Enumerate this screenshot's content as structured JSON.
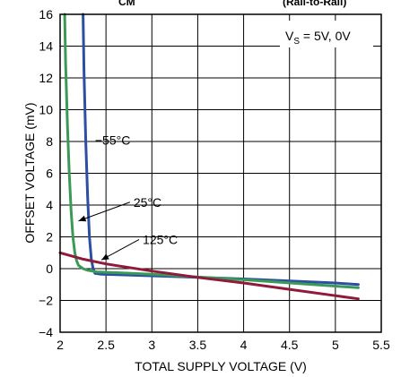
{
  "chart_data": {
    "type": "line",
    "title_fragment": "CM",
    "title_fragment_right": "(Rail-to-Rail)",
    "xlabel": "TOTAL SUPPLY VOLTAGE (V)",
    "ylabel": "OFFSET VOLTAGE (mV)",
    "xlim": [
      2,
      5.5
    ],
    "ylim": [
      -4,
      16
    ],
    "xticks": [
      2,
      2.5,
      3,
      3.5,
      4,
      4.5,
      5,
      5.5
    ],
    "xtick_labels": [
      "2",
      "2.5",
      "3",
      "3.5",
      "4",
      "4.5",
      "5",
      "5.5"
    ],
    "yticks": [
      -4,
      -2,
      0,
      2,
      4,
      6,
      8,
      10,
      12,
      14,
      16
    ],
    "ytick_labels": [
      "−4",
      "−2",
      "0",
      "2",
      "4",
      "6",
      "8",
      "10",
      "12",
      "14",
      "16"
    ],
    "grid": true,
    "condition_label": {
      "prefix": "V",
      "subscript": "S",
      "suffix": " = 5V, 0V"
    },
    "series": [
      {
        "name": "−55°C",
        "color": "#2b4fa3",
        "x": [
          2.25,
          2.26,
          2.28,
          2.3,
          2.32,
          2.34,
          2.36,
          2.38,
          2.45,
          3.0,
          4.0,
          5.0,
          5.25
        ],
        "y": [
          16,
          12.5,
          8.0,
          4.5,
          2.0,
          0.6,
          0.0,
          -0.3,
          -0.35,
          -0.45,
          -0.65,
          -0.9,
          -1.0
        ]
      },
      {
        "name": "25°C",
        "color": "#3a9a55",
        "x": [
          2.05,
          2.06,
          2.08,
          2.1,
          2.12,
          2.14,
          2.16,
          2.18,
          2.2,
          2.25,
          2.3,
          2.4,
          3.0,
          4.0,
          5.0,
          5.25
        ],
        "y": [
          16,
          13.0,
          9.0,
          6.0,
          3.6,
          2.0,
          1.0,
          0.5,
          0.2,
          0.0,
          -0.1,
          -0.2,
          -0.35,
          -0.7,
          -1.1,
          -1.2
        ]
      },
      {
        "name": "125°C",
        "color": "#8e1b3c",
        "x": [
          2.0,
          2.25,
          2.5,
          3.0,
          3.5,
          4.0,
          4.5,
          5.0,
          5.25
        ],
        "y": [
          1.0,
          0.6,
          0.3,
          -0.15,
          -0.55,
          -0.9,
          -1.3,
          -1.7,
          -1.9
        ]
      }
    ],
    "annotations": [
      {
        "text": "−55°C",
        "x": 2.38,
        "y": 7.8
      },
      {
        "text": "25°C",
        "x": 2.8,
        "y": 3.9,
        "pointer_to": [
          2.2,
          3.0
        ]
      },
      {
        "text": "125°C",
        "x": 2.9,
        "y": 1.55,
        "pointer_to": [
          2.45,
          0.55
        ]
      }
    ]
  }
}
